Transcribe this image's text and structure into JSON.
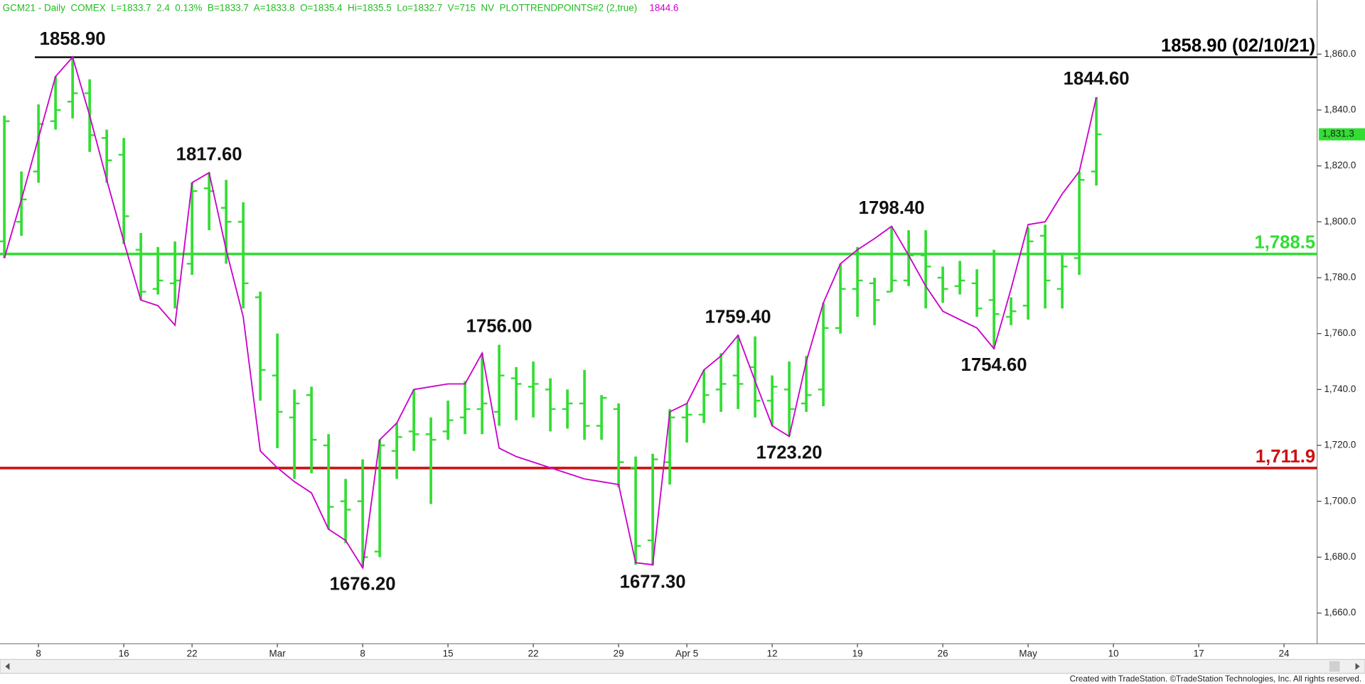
{
  "chart_data": {
    "type": "ohlc",
    "title": "GCM21 - Daily  COMEX  L=1833.7  2.4  0.13%  B=1833.7  A=1833.8  O=1835.4  Hi=1835.5  Lo=1832.7  V=715  NV  PLOTTRENDPOINTS#2 (2,true)",
    "indicator_value": "1844.6",
    "footer": "Created with TradeStation. ©TradeStation Technologies, Inc. All rights reserved.",
    "categories": [
      null,
      null,
      "8",
      null,
      null,
      null,
      null,
      "16",
      null,
      null,
      null,
      "22",
      null,
      null,
      null,
      null,
      "Mar",
      null,
      null,
      null,
      null,
      "8",
      null,
      null,
      null,
      null,
      "15",
      null,
      null,
      null,
      null,
      "22",
      null,
      null,
      null,
      null,
      "29",
      null,
      null,
      null,
      "Apr 5",
      null,
      null,
      null,
      null,
      "12",
      null,
      null,
      null,
      null,
      "19",
      null,
      null,
      null,
      null,
      "26",
      null,
      null,
      null,
      null,
      "May",
      null,
      null,
      null,
      null,
      "10",
      null,
      null,
      null,
      null,
      "17",
      null,
      null,
      null,
      null,
      "24",
      null
    ],
    "bar_color": "#33dd33",
    "open": [
      1793,
      1800,
      1818,
      1836,
      1843,
      1846,
      1830,
      1824,
      1790,
      1776,
      1778,
      1785,
      1812,
      1805,
      1800,
      1773,
      1745,
      1730,
      1738,
      1720,
      1700,
      1700,
      1682,
      1718,
      1725,
      1724,
      1725,
      1730,
      1733,
      1732,
      1744,
      1741,
      1740,
      1733,
      1735,
      1727,
      1733,
      1712,
      1686,
      1714,
      1730,
      1731,
      1740,
      1745,
      1748,
      1736,
      1740,
      1735,
      1740,
      1762,
      1776,
      1778,
      1775,
      1779,
      1788,
      1780,
      1777,
      1778,
      1772,
      1766,
      1770,
      1795,
      1776,
      1787,
      1818,
      null,
      null,
      null,
      null,
      null,
      null,
      null,
      null,
      null,
      null,
      null,
      null
    ],
    "high": [
      1838,
      1818,
      1842,
      1852,
      1858.9,
      1851,
      1833,
      1830,
      1796,
      1791,
      1793,
      1814,
      1817.6,
      1815,
      1807,
      1775,
      1760,
      1740,
      1741,
      1724,
      1708,
      1715,
      1722,
      1728,
      1740,
      1730,
      1736,
      1743,
      1753,
      1756,
      1748,
      1750,
      1744,
      1740,
      1747,
      1738,
      1735,
      1716,
      1717,
      1733,
      1735,
      1747,
      1753,
      1759.4,
      1759,
      1745,
      1750,
      1752,
      1771,
      1785,
      1791,
      1780,
      1798.4,
      1797,
      1797,
      1784,
      1786,
      1783,
      1790,
      1773,
      1798,
      1799,
      1789,
      1818,
      1844.6,
      null,
      null,
      null,
      null,
      null,
      null,
      null,
      null,
      null,
      null,
      null,
      null
    ],
    "low": [
      1787,
      1795,
      1814,
      1833,
      1837,
      1825,
      1814,
      1792,
      1772,
      1774,
      1769,
      1781,
      1797,
      1785,
      1769,
      1736,
      1719,
      1708,
      1710,
      1690,
      1685,
      1676.2,
      1680,
      1708,
      1718,
      1699,
      1722,
      1724,
      1724,
      1727,
      1729,
      1730,
      1725,
      1726,
      1722,
      1722,
      1705,
      1677.3,
      1677,
      1706,
      1721,
      1728,
      1732,
      1733,
      1730,
      1727,
      1723.2,
      1732,
      1734,
      1760,
      1766,
      1763,
      1775,
      1777,
      1769,
      1771,
      1774,
      1766,
      1754.6,
      1763,
      1765,
      1769,
      1769,
      1781,
      1813,
      null,
      null,
      null,
      null,
      null,
      null,
      null,
      null,
      null,
      null,
      null,
      null
    ],
    "close": [
      1836,
      1808,
      1835,
      1840,
      1846,
      1831,
      1822,
      1802,
      1775,
      1779,
      1779,
      1811,
      1811,
      1800,
      1778,
      1747,
      1732,
      1735,
      1722,
      1698,
      1697,
      1680,
      1720,
      1723,
      1724,
      1722,
      1729,
      1733,
      1735,
      1745,
      1742,
      1742,
      1733,
      1735,
      1727,
      1737,
      1714,
      1684,
      1715,
      1730,
      1731,
      1738,
      1742,
      1742,
      1736,
      1741,
      1733,
      1738,
      1762,
      1776,
      1779,
      1772,
      1779,
      1788,
      1784,
      1776,
      1779,
      1769,
      1767,
      1768,
      1793,
      1779,
      1784,
      1815,
      1831.3,
      null,
      null,
      null,
      null,
      null,
      null,
      null,
      null,
      null,
      null,
      null,
      null
    ],
    "trend_line": {
      "color": "#cc00cc",
      "values": [
        1787,
        1808,
        1830,
        1852,
        1858.9,
        1838,
        1815,
        1793,
        1772,
        1770,
        1763,
        1814,
        1817.6,
        1790,
        1766,
        1718,
        1712,
        1707,
        1703,
        1690,
        1686,
        1676.2,
        1722,
        1728,
        1740,
        1741,
        1742,
        1742,
        1753,
        1719,
        1716,
        1714,
        1712,
        1710,
        1708,
        1707,
        1706,
        1678,
        1677.3,
        1732,
        1735,
        1747,
        1752,
        1759.4,
        1743,
        1727,
        1723.2,
        1750,
        1771,
        1785,
        1790,
        1794,
        1798.4,
        1788,
        1777,
        1768,
        1765,
        1762,
        1754.6,
        1776,
        1799,
        1800,
        1810,
        1818,
        1844.6,
        null,
        null,
        null,
        null,
        null,
        null,
        null,
        null,
        null,
        null,
        null,
        null
      ]
    },
    "annotations": [
      "1858.90",
      "1817.60",
      "1756.00",
      "1676.20",
      "1677.30",
      "1759.40",
      "1723.20",
      "1798.40",
      "1754.60",
      "1844.60"
    ],
    "levels": [
      {
        "value": 1858.9,
        "label": "1858.90 (02/10/21)",
        "color": "#000000"
      },
      {
        "value": 1788.5,
        "label": "1,788.5",
        "color": "#33dd33"
      },
      {
        "value": 1711.9,
        "label": "1,711.9",
        "color": "#cc1111"
      }
    ],
    "last_price": {
      "value": 1831.3,
      "label": "1,831.3",
      "color": "#33dd33"
    },
    "ylim": [
      1649,
      1879.3
    ],
    "yticks": [
      {
        "value": 1660,
        "label": "1,660.0"
      },
      {
        "value": 1680,
        "label": "1,680.0"
      },
      {
        "value": 1700,
        "label": "1,700.0"
      },
      {
        "value": 1720,
        "label": "1,720.0"
      },
      {
        "value": 1740,
        "label": "1,740.0"
      },
      {
        "value": 1760,
        "label": "1,760.0"
      },
      {
        "value": 1780,
        "label": "1,780.0"
      },
      {
        "value": 1800,
        "label": "1,800.0"
      },
      {
        "value": 1820,
        "label": "1,820.0"
      },
      {
        "value": 1840,
        "label": "1,840.0"
      },
      {
        "value": 1860,
        "label": "1,860.0"
      }
    ]
  }
}
